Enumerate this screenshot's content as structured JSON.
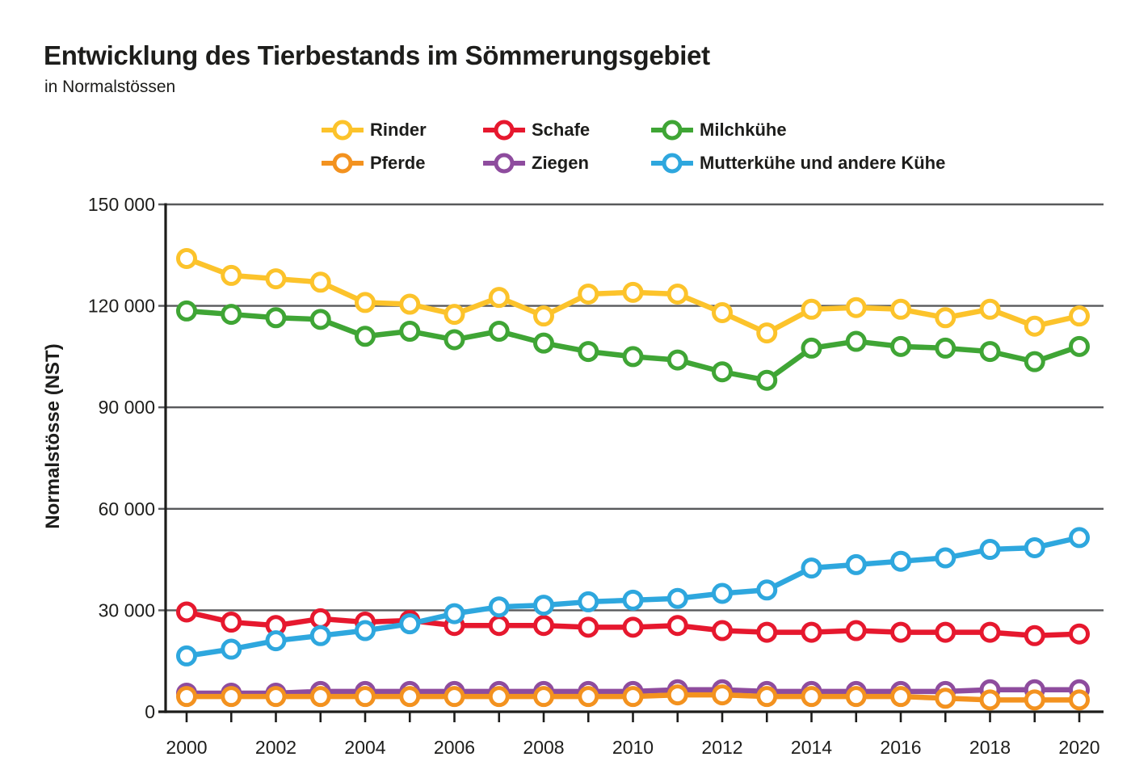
{
  "header": {
    "title": "Entwicklung des Tierbestands im Sömmerungsgebiet",
    "subtitle": "in Normalstössen"
  },
  "chart_data": {
    "type": "line",
    "y_axis_title": "Normalstösse (NST)",
    "ylim": [
      0,
      150000
    ],
    "grid": true,
    "legend_position": "top",
    "x": [
      2000,
      2001,
      2002,
      2003,
      2004,
      2005,
      2006,
      2007,
      2008,
      2009,
      2010,
      2011,
      2012,
      2013,
      2014,
      2015,
      2016,
      2017,
      2018,
      2019,
      2020
    ],
    "x_tick_labels": [
      "2000",
      "2002",
      "2004",
      "2006",
      "2008",
      "2010",
      "2012",
      "2014",
      "2016",
      "2018",
      "2020"
    ],
    "y_ticks": [
      {
        "value": 150000,
        "label": "150 000"
      },
      {
        "value": 120000,
        "label": "120 000"
      },
      {
        "value": 90000,
        "label": "90 000"
      },
      {
        "value": 60000,
        "label": "60 000"
      },
      {
        "value": 30000,
        "label": "30 000"
      },
      {
        "value": 0,
        "label": "0"
      }
    ],
    "series": [
      {
        "name": "Rinder",
        "color": "#FCC32B",
        "values": [
          134000,
          129000,
          128000,
          127000,
          121000,
          120500,
          117500,
          122500,
          117000,
          123500,
          124000,
          123500,
          118000,
          112000,
          119000,
          119500,
          119000,
          116500,
          119000,
          114000,
          117000
        ]
      },
      {
        "name": "Schafe",
        "color": "#E6182E",
        "values": [
          29500,
          26500,
          25500,
          27500,
          26500,
          27000,
          25500,
          25500,
          25500,
          25000,
          25000,
          25500,
          24000,
          23500,
          23500,
          24000,
          23500,
          23500,
          23500,
          22500,
          23000
        ]
      },
      {
        "name": "Milchkühe",
        "color": "#3FA535",
        "values": [
          118500,
          117500,
          116500,
          116000,
          111000,
          112500,
          110000,
          112500,
          109000,
          106500,
          105000,
          104000,
          100500,
          98000,
          107500,
          109500,
          108000,
          107500,
          106500,
          103500,
          108000
        ]
      },
      {
        "name": "Pferde",
        "color": "#F3921F",
        "values": [
          4500,
          4500,
          4500,
          4500,
          4500,
          4500,
          4500,
          4500,
          4500,
          4500,
          4500,
          5000,
          5000,
          4500,
          4500,
          4500,
          4500,
          4000,
          3500,
          3500,
          3500
        ]
      },
      {
        "name": "Ziegen",
        "color": "#8E4C9E",
        "values": [
          5500,
          5500,
          5500,
          6000,
          6000,
          6000,
          6000,
          6000,
          6000,
          6000,
          6000,
          6500,
          6500,
          6000,
          6000,
          6000,
          6000,
          6000,
          6500,
          6500,
          6500
        ]
      },
      {
        "name": "Mutterkühe und andere Kühe",
        "color": "#2EA7DE",
        "values": [
          16500,
          18500,
          21000,
          22500,
          24000,
          26000,
          29000,
          31000,
          31500,
          32500,
          33000,
          33500,
          35000,
          36000,
          42500,
          43500,
          44500,
          45500,
          48000,
          48500,
          51500
        ]
      }
    ],
    "colors": {
      "axis": "#1d1d1b",
      "gridline": "#58595B",
      "marker_fill": "#ffffff"
    }
  }
}
